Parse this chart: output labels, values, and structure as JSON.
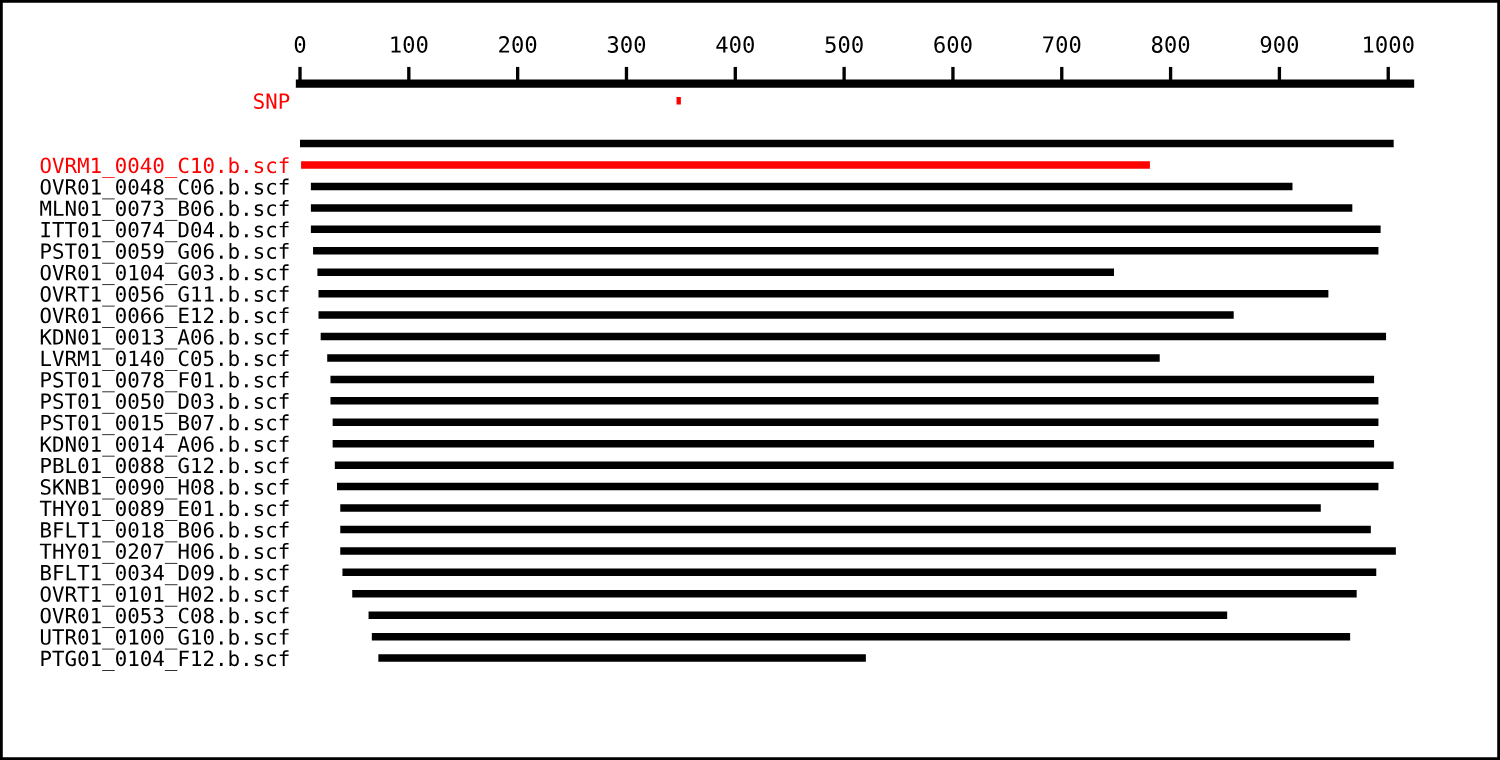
{
  "chart_data": {
    "type": "bar",
    "orientation": "horizontal",
    "categories": [
      "SNP",
      null,
      null,
      "OVRM1_0040_C10.b.scf",
      "OVR01_0048_C06.b.scf",
      "MLN01_0073_B06.b.scf",
      "ITT01_0074_D04.b.scf",
      "PST01_0059_G06.b.scf",
      "OVR01_0104_G03.b.scf",
      "OVRT1_0056_G11.b.scf",
      "OVR01_0066_E12.b.scf",
      "KDN01_0013_A06.b.scf",
      "LVRM1_0140_C05.b.scf",
      "PST01_0078_F01.b.scf",
      "PST01_0050_D03.b.scf",
      "PST01_0015_B07.b.scf",
      "KDN01_0014_A06.b.scf",
      "PBL01_0088_G12.b.scf",
      "SKNB1_0090_H08.b.scf",
      "THY01_0089_E01.b.scf",
      "BFLT1_0018_B06.b.scf",
      "THY01_0207_H06.b.scf",
      "BFLT1_0034_D09.b.scf",
      "OVRT1_0101_H02.b.scf",
      "OVR01_0053_C08.b.scf",
      "UTR01_0100_G10.b.scf",
      "PTG01_0104_F12.b.scf"
    ],
    "base": [
      346,
      null,
      0,
      1,
      10,
      10,
      10,
      12,
      16,
      17,
      17,
      19,
      25,
      28,
      28,
      30,
      30,
      32,
      34,
      37,
      37,
      37,
      39,
      48,
      63,
      66,
      72
    ],
    "values": [
      4,
      null,
      1005,
      780,
      902,
      957,
      983,
      979,
      732,
      928,
      841,
      979,
      765,
      959,
      963,
      961,
      957,
      973,
      957,
      901,
      947,
      970,
      950,
      923,
      789,
      899,
      448
    ],
    "colors": [
      "#ff0000",
      "#000000",
      "#000000",
      "#ff0000",
      "#000000",
      "#000000",
      "#000000",
      "#000000",
      "#000000",
      "#000000",
      "#000000",
      "#000000",
      "#000000",
      "#000000",
      "#000000",
      "#000000",
      "#000000",
      "#000000",
      "#000000",
      "#000000",
      "#000000",
      "#000000",
      "#000000",
      "#000000",
      "#000000",
      "#000000",
      "#000000"
    ],
    "xlim": [
      0,
      1020
    ],
    "xticks": [
      0,
      100,
      200,
      300,
      400,
      500,
      600,
      700,
      800,
      900,
      1000
    ],
    "grid": false
  }
}
